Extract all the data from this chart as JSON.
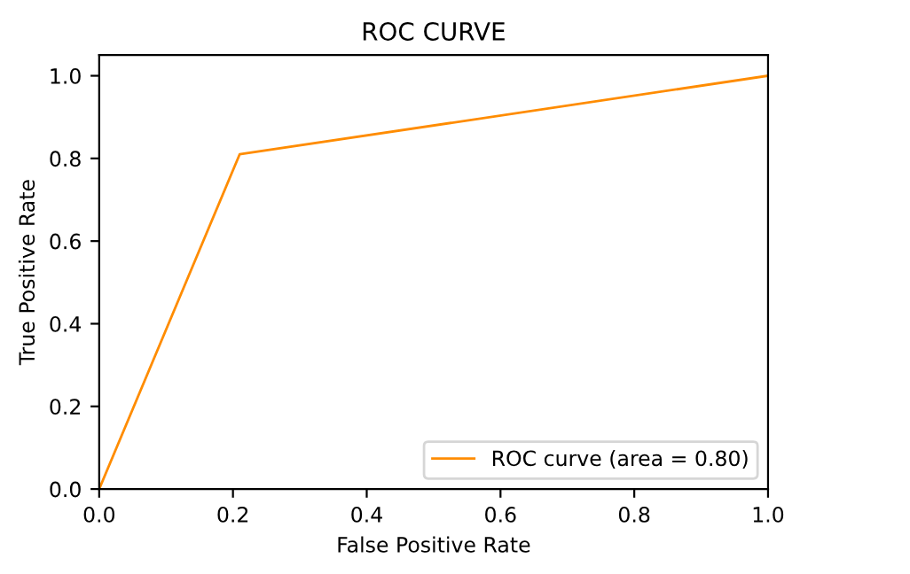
{
  "chart_data": {
    "type": "line",
    "title": "ROC CURVE",
    "xlabel": "False Positive Rate",
    "ylabel": "True Positive Rate",
    "series": [
      {
        "name": "ROC curve (area = 0.80)",
        "color": "#ff8c00",
        "x": [
          0,
          0.21,
          1
        ],
        "values": [
          0,
          0.81,
          1
        ]
      }
    ],
    "xlim": [
      0,
      1
    ],
    "ylim": [
      0,
      1.05
    ],
    "xticks": [
      {
        "value": 0,
        "label": "0.0"
      },
      0.2,
      0.4,
      0.6,
      0.8,
      {
        "value": 1,
        "label": "1.0"
      }
    ],
    "yticks": [
      {
        "value": 0,
        "label": "0.0"
      },
      0.2,
      0.4,
      0.6,
      0.8,
      {
        "value": 1,
        "label": "1.0"
      }
    ],
    "grid": false,
    "legend": "lower right"
  }
}
